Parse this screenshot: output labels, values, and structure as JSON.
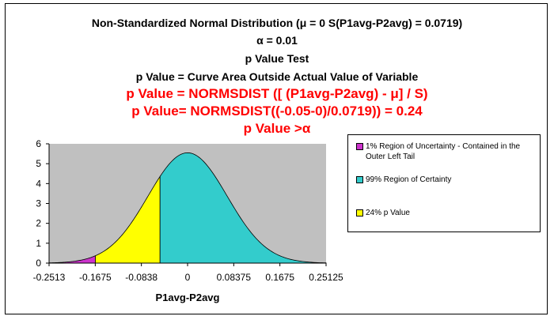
{
  "title_lines": {
    "line1": "Non-Standardized Normal Distribution  (μ = 0  S(P1avg-P2avg) = 0.0719)",
    "line2": "α = 0.01",
    "line3": "p Value Test",
    "line4": "p Value = Curve Area Outside Actual Value of Variable",
    "line5": "p Value = NORMSDIST ([ (P1avg-P2avg) - μ] / S)",
    "line6": "p Value= NORMSDIST((-0.05-0)/0.0719)) = 0.24",
    "line7": "p Value >α"
  },
  "colors": {
    "plot_bg": "#c0c0c0",
    "tail_region": "#cc33cc",
    "certainty_region": "#33cccc",
    "pvalue_region": "#ffff00",
    "title_black": "#000000",
    "title_red": "#ff0000"
  },
  "chart_data": {
    "type": "area",
    "distribution": {
      "mean": 0,
      "sd": 0.0719
    },
    "xlabel": "P1avg-P2avg",
    "ylabel": "",
    "xlim": [
      -0.2513,
      0.25125
    ],
    "ylim": [
      0,
      6
    ],
    "x_tick_labels": [
      "-0.2513",
      "-0.1675",
      "-0.0838",
      "0",
      "0.08375",
      "0.1675",
      "0.25125"
    ],
    "y_tick_labels": [
      "0",
      "1",
      "2",
      "3",
      "4",
      "5",
      "6"
    ],
    "regions": [
      {
        "name": "1% Region of Uncertainty - Contained in the Outer Left Tail",
        "color": "#cc33cc",
        "from": -0.2513,
        "to": -0.1673
      },
      {
        "name": "24% p Value",
        "color": "#ffff00",
        "from": -0.1673,
        "to": -0.05
      },
      {
        "name": "99% Region of Certainty",
        "color": "#33cccc",
        "from": -0.05,
        "to": 0.25125
      }
    ],
    "grid": false,
    "legend_position": "right"
  },
  "legend": {
    "item1": "1% Region of Uncertainty - Contained in the Outer Left Tail",
    "item2": "99% Region of Certainty",
    "item3": "24% p Value"
  }
}
